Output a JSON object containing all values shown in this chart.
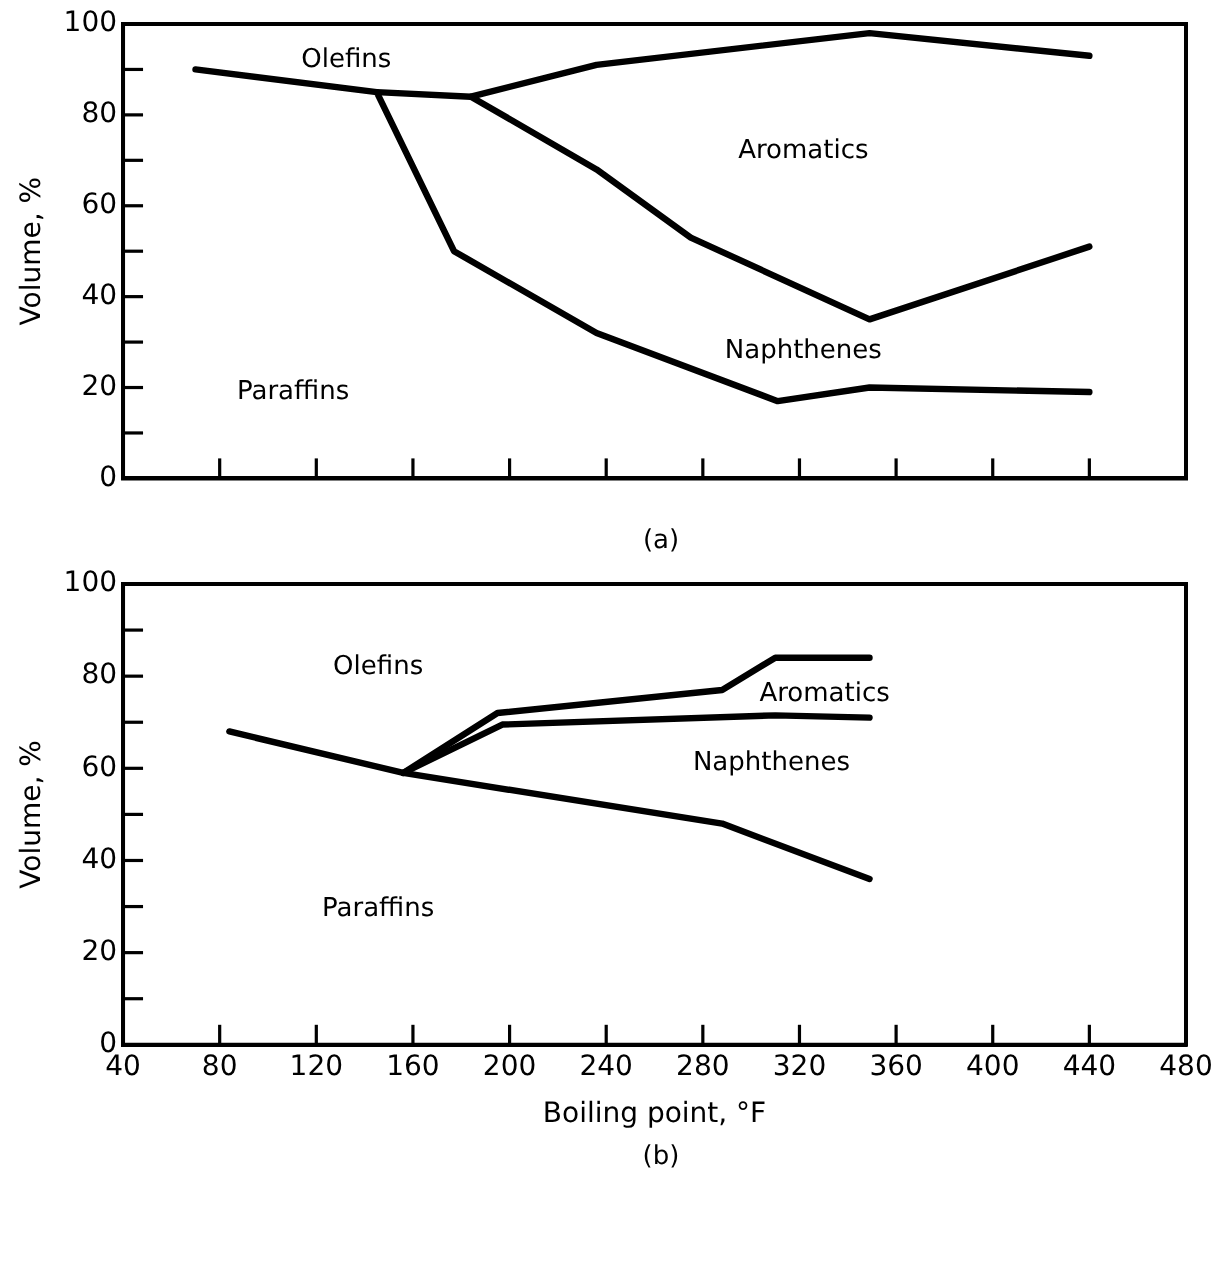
{
  "chart_data": [
    {
      "type": "line",
      "ylabel": "Volume, %",
      "xlim": [
        40,
        480
      ],
      "ylim": [
        0,
        100
      ],
      "xticks": [
        {
          "value": 80,
          "label": null
        },
        {
          "value": 120,
          "label": null
        },
        {
          "value": 160,
          "label": null
        },
        {
          "value": 200,
          "label": null
        },
        {
          "value": 240,
          "label": null
        },
        {
          "value": 280,
          "label": null
        },
        {
          "value": 320,
          "label": null
        },
        {
          "value": 360,
          "label": null
        },
        {
          "value": 400,
          "label": null
        },
        {
          "value": 440,
          "label": null
        }
      ],
      "yticks": [
        0,
        {
          "value": 10,
          "label": null
        },
        20,
        {
          "value": 30,
          "label": null
        },
        40,
        {
          "value": 50,
          "label": null
        },
        60,
        {
          "value": 70,
          "label": null
        },
        80,
        {
          "value": 90,
          "label": null
        },
        100
      ],
      "tick_labels": "y",
      "grid": false,
      "legend": false,
      "marker": "none",
      "line_style": "solid",
      "series": [
        {
          "color": "#000000",
          "x": [
            70,
            145,
            177,
            236,
            311,
            349,
            440
          ],
          "values": [
            90,
            85,
            50,
            32,
            17,
            20,
            19
          ]
        },
        {
          "color": "#000000",
          "x": [
            145,
            184,
            236,
            275,
            349,
            440
          ],
          "values": [
            85,
            84,
            68,
            53,
            35,
            51
          ]
        },
        {
          "color": "#000000",
          "x": [
            184,
            236,
            349,
            440
          ],
          "values": [
            84,
            91,
            98,
            93
          ]
        }
      ],
      "annotations": [
        "Olefins",
        "Aromatics",
        "Naphthenes",
        "Paraffins",
        "(a)"
      ]
    },
    {
      "type": "line",
      "xlabel": "Boiling point, °F",
      "ylabel": "Volume, %",
      "xlim": [
        40,
        480
      ],
      "ylim": [
        0,
        100
      ],
      "xticks": [
        40,
        80,
        120,
        160,
        200,
        240,
        280,
        320,
        360,
        400,
        440,
        480
      ],
      "yticks": [
        0,
        {
          "value": 10,
          "label": null
        },
        20,
        {
          "value": 30,
          "label": null
        },
        40,
        {
          "value": 50,
          "label": null
        },
        60,
        {
          "value": 70,
          "label": null
        },
        80,
        {
          "value": 90,
          "label": null
        },
        100
      ],
      "grid": false,
      "legend": false,
      "marker": "none",
      "line_style": "solid",
      "series": [
        {
          "color": "#000000",
          "x": [
            84,
            156,
            288,
            349
          ],
          "values": [
            68,
            59,
            48,
            36
          ]
        },
        {
          "color": "#000000",
          "x": [
            156,
            197,
            310,
            349
          ],
          "values": [
            59,
            69.5,
            71.5,
            71
          ]
        },
        {
          "color": "#000000",
          "x": [
            156,
            195,
            288,
            310,
            349
          ],
          "values": [
            59,
            72,
            77,
            84,
            84
          ]
        }
      ],
      "annotations": [
        "Olefins",
        "Aromatics",
        "Naphthenes",
        "Paraffins",
        "(b)"
      ]
    }
  ]
}
